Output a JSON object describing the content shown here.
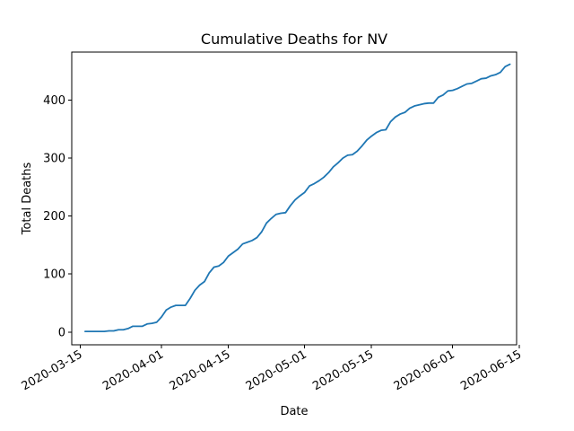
{
  "chart_data": {
    "type": "line",
    "title": "Cumulative Deaths for NV",
    "xlabel": "Date",
    "ylabel": "Total Deaths",
    "grid": false,
    "legend": "none",
    "xlim_days": [
      -2.8,
      90.4
    ],
    "ylim": [
      -22,
      483
    ],
    "x_origin_date": "2020-03-16",
    "xticks": [
      {
        "day": -1,
        "label": "2020-03-15"
      },
      {
        "day": 16,
        "label": "2020-04-01"
      },
      {
        "day": 30,
        "label": "2020-04-15"
      },
      {
        "day": 46,
        "label": "2020-05-01"
      },
      {
        "day": 60,
        "label": "2020-05-15"
      },
      {
        "day": 77,
        "label": "2020-06-01"
      },
      {
        "day": 91,
        "label": "2020-06-15"
      }
    ],
    "yticks": [
      0,
      100,
      200,
      300,
      400
    ],
    "series": [
      {
        "name": "NV",
        "color": "#1f77b4",
        "x": [
          0,
          1,
          2,
          3,
          4,
          5,
          6,
          7,
          8,
          9,
          10,
          11,
          12,
          13,
          14,
          15,
          16,
          17,
          18,
          19,
          20,
          21,
          22,
          23,
          24,
          25,
          26,
          27,
          28,
          29,
          30,
          31,
          32,
          33,
          34,
          35,
          36,
          37,
          38,
          39,
          40,
          41,
          42,
          43,
          44,
          45,
          46,
          47,
          48,
          49,
          50,
          51,
          52,
          53,
          54,
          55,
          56,
          57,
          58,
          59,
          60,
          61,
          62,
          63,
          64,
          65,
          66,
          67,
          68,
          69,
          70,
          71,
          72,
          73,
          74,
          75,
          76,
          77,
          78,
          79,
          80,
          81,
          82,
          83,
          84,
          85,
          86,
          87,
          88,
          89
        ],
        "values": [
          1,
          1,
          1,
          1,
          1,
          2,
          2,
          4,
          4,
          6,
          10,
          10,
          10,
          14,
          15,
          17,
          26,
          38,
          43,
          46,
          46,
          46,
          58,
          72,
          81,
          87,
          102,
          112,
          114,
          120,
          131,
          137,
          143,
          152,
          155,
          158,
          163,
          173,
          188,
          196,
          203,
          205,
          206,
          218,
          228,
          235,
          241,
          252,
          256,
          261,
          267,
          275,
          285,
          292,
          300,
          305,
          306,
          312,
          321,
          331,
          338,
          344,
          348,
          349,
          363,
          371,
          376,
          379,
          386,
          390,
          392,
          394,
          395,
          395,
          405,
          409,
          416,
          417,
          420,
          424,
          428,
          429,
          433,
          437,
          438,
          442,
          444,
          448,
          458,
          462
        ]
      }
    ]
  }
}
